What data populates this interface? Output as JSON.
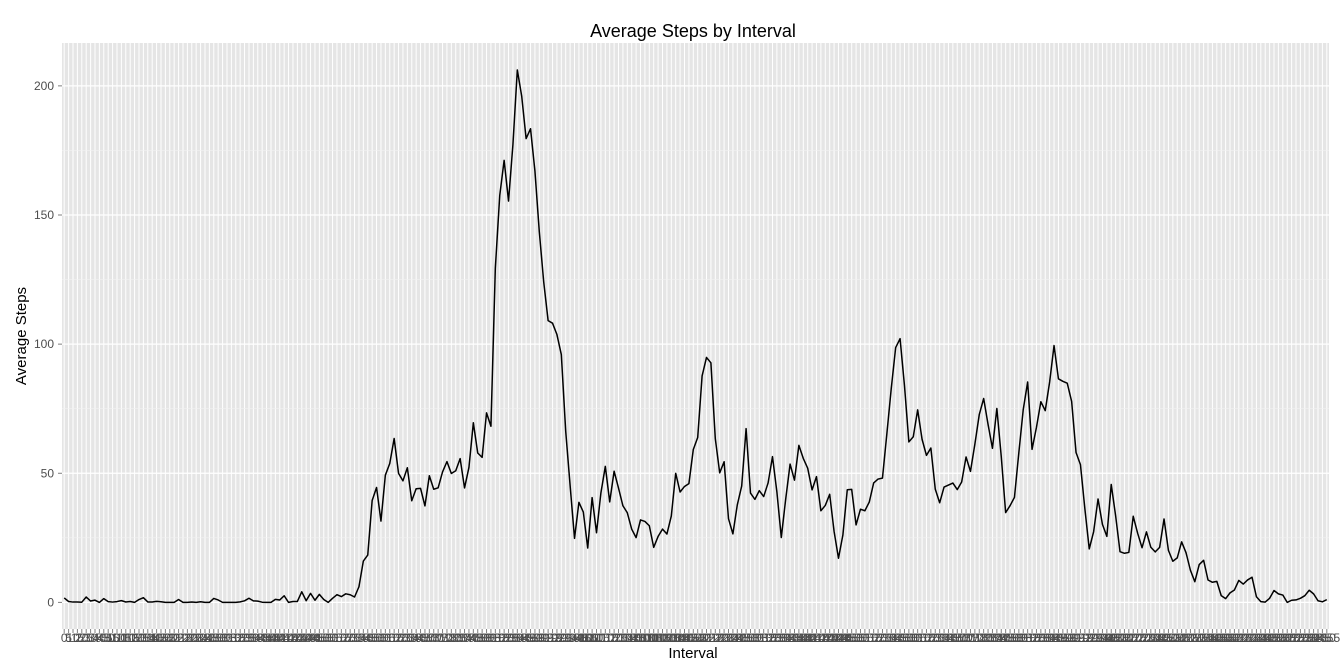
{
  "chart_data": {
    "type": "line",
    "title": "Average Steps by Interval",
    "xlabel": "Interval",
    "ylabel": "Average Steps",
    "x_axis": "categorical",
    "y_ticks": [
      0,
      50,
      100,
      150,
      200
    ],
    "ylim": [
      -10.3,
      216.6
    ],
    "grid": true,
    "colors": {
      "panel": "#e5e5e5",
      "grid": "#ffffff",
      "line": "#000000",
      "tick_text": "#4d4d4d"
    },
    "series": [
      {
        "values": [
          1.72,
          0.34,
          0.13,
          0.15,
          0.08,
          2.09,
          0.53,
          0.87,
          0.0,
          1.47,
          0.3,
          0.13,
          0.32,
          0.68,
          0.15,
          0.34,
          0.0,
          1.11,
          1.83,
          0.17,
          0.17,
          0.38,
          0.26,
          0.0,
          0.0,
          0.0,
          1.13,
          0.0,
          0.0,
          0.13,
          0.0,
          0.23,
          0.0,
          0.0,
          1.55,
          0.94,
          0.0,
          0.0,
          0.0,
          0.0,
          0.21,
          0.62,
          1.62,
          0.58,
          0.49,
          0.08,
          0.0,
          0.0,
          1.18,
          0.94,
          2.57,
          0.0,
          0.34,
          0.36,
          4.11,
          0.66,
          3.49,
          0.83,
          3.11,
          1.11,
          0.0,
          1.57,
          3.0,
          2.25,
          3.32,
          2.96,
          2.09,
          6.06,
          16.02,
          18.34,
          39.45,
          44.49,
          31.49,
          49.26,
          53.77,
          63.45,
          49.96,
          47.08,
          52.15,
          39.34,
          44.02,
          44.17,
          37.36,
          49.04,
          43.81,
          44.38,
          50.51,
          54.51,
          49.92,
          50.98,
          55.68,
          44.32,
          52.26,
          69.55,
          57.85,
          56.15,
          73.38,
          68.21,
          129.43,
          157.53,
          171.15,
          155.4,
          177.3,
          206.17,
          195.92,
          179.57,
          183.4,
          167.02,
          143.45,
          124.04,
          109.11,
          108.11,
          103.72,
          95.97,
          66.21,
          45.23,
          24.8,
          38.75,
          34.98,
          21.06,
          40.57,
          26.98,
          42.42,
          52.66,
          38.92,
          50.79,
          44.28,
          37.42,
          34.7,
          28.34,
          25.09,
          31.94,
          31.36,
          29.68,
          21.32,
          25.55,
          28.38,
          26.47,
          33.43,
          49.98,
          42.75,
          44.89,
          46.0,
          59.19,
          63.87,
          87.7,
          94.85,
          92.77,
          63.4,
          50.17,
          54.47,
          32.42,
          26.53,
          37.74,
          45.06,
          67.28,
          42.34,
          39.89,
          43.26,
          40.98,
          46.25,
          56.43,
          42.75,
          25.13,
          39.97,
          53.55,
          47.32,
          60.81,
          55.75,
          51.96,
          43.58,
          48.7,
          35.47,
          37.55,
          41.85,
          27.51,
          17.11,
          26.08,
          43.62,
          43.77,
          30.02,
          36.08,
          35.49,
          38.85,
          46.26,
          47.75,
          48.13,
          65.32,
          82.91,
          98.66,
          102.11,
          83.96,
          62.13,
          64.13,
          74.55,
          63.17,
          56.91,
          59.77,
          43.87,
          38.57,
          44.66,
          45.45,
          46.21,
          43.68,
          46.62,
          56.3,
          50.72,
          61.23,
          72.72,
          78.94,
          68.94,
          59.66,
          75.09,
          56.51,
          34.77,
          37.45,
          40.68,
          58.02,
          74.7,
          85.32,
          59.26,
          67.77,
          77.7,
          74.25,
          85.34,
          99.45,
          86.58,
          85.6,
          84.87,
          77.83,
          58.04,
          53.36,
          36.32,
          20.72,
          27.4,
          40.02,
          30.21,
          25.55,
          45.66,
          33.53,
          19.62,
          19.02,
          19.34,
          33.34,
          26.81,
          21.17,
          27.3,
          21.34,
          19.55,
          21.32,
          32.3,
          20.15,
          15.94,
          17.23,
          23.45,
          19.25,
          12.45,
          8.02,
          14.66,
          16.3,
          8.68,
          7.79,
          8.13,
          2.62,
          1.45,
          3.68,
          4.81,
          8.51,
          7.08,
          8.7,
          9.75,
          2.2,
          0.32,
          0.11,
          1.6,
          4.6,
          3.3,
          2.85,
          0.0,
          0.83,
          0.96,
          1.58,
          2.6,
          4.7,
          3.3,
          0.64,
          0.23,
          1.08
        ],
        "color": "#000000"
      }
    ],
    "x_tick_labels": [
      "0",
      "5",
      "10",
      "15",
      "20",
      "25",
      "30",
      "35",
      "40",
      "45",
      "50",
      "55",
      "100",
      "105",
      "110",
      "115",
      "120",
      "125",
      "130",
      "135",
      "140",
      "145",
      "150",
      "155",
      "200",
      "205",
      "210",
      "215",
      "220",
      "225",
      "230",
      "235",
      "240",
      "245",
      "250",
      "255",
      "300",
      "305",
      "310",
      "315",
      "320",
      "325",
      "330",
      "335",
      "340",
      "345",
      "350",
      "355",
      "400",
      "405",
      "410",
      "415",
      "420",
      "425",
      "430",
      "435",
      "440",
      "445",
      "450",
      "455",
      "500",
      "505",
      "510",
      "515",
      "520",
      "525",
      "530",
      "535",
      "540",
      "545",
      "550",
      "555",
      "600",
      "605",
      "610",
      "615",
      "620",
      "625",
      "630",
      "635",
      "640",
      "645",
      "650",
      "655",
      "700",
      "705",
      "710",
      "715",
      "720",
      "725",
      "730",
      "735",
      "740",
      "745",
      "750",
      "755",
      "800",
      "805",
      "810",
      "815",
      "820",
      "825",
      "830",
      "835",
      "840",
      "845",
      "850",
      "855",
      "900",
      "905",
      "910",
      "915",
      "920",
      "925",
      "930",
      "935",
      "940",
      "945",
      "950",
      "955",
      "1000",
      "1005",
      "1010",
      "1015",
      "1020",
      "1025",
      "1030",
      "1035",
      "1040",
      "1045",
      "1050",
      "1055",
      "1100",
      "1105",
      "1110",
      "1115",
      "1120",
      "1125",
      "1130",
      "1135",
      "1140",
      "1145",
      "1150",
      "1155",
      "1200",
      "1205",
      "1210",
      "1215",
      "1220",
      "1225",
      "1230",
      "1235",
      "1240",
      "1245",
      "1250",
      "1255",
      "1300",
      "1305",
      "1310",
      "1315",
      "1320",
      "1325",
      "1330",
      "1335",
      "1340",
      "1345",
      "1350",
      "1355",
      "1400",
      "1405",
      "1410",
      "1415",
      "1420",
      "1425",
      "1430",
      "1435",
      "1440",
      "1445",
      "1450",
      "1455",
      "1500",
      "1505",
      "1510",
      "1515",
      "1520",
      "1525",
      "1530",
      "1535",
      "1540",
      "1545",
      "1550",
      "1555",
      "1600",
      "1605",
      "1610",
      "1615",
      "1620",
      "1625",
      "1630",
      "1635",
      "1640",
      "1645",
      "1650",
      "1655",
      "1700",
      "1705",
      "1710",
      "1715",
      "1720",
      "1725",
      "1730",
      "1735",
      "1740",
      "1745",
      "1750",
      "1755",
      "1800",
      "1805",
      "1810",
      "1815",
      "1820",
      "1825",
      "1830",
      "1835",
      "1840",
      "1845",
      "1850",
      "1855",
      "1900",
      "1905",
      "1910",
      "1915",
      "1920",
      "1925",
      "1930",
      "1935",
      "1940",
      "1945",
      "1950",
      "1955",
      "2000",
      "2005",
      "2010",
      "2015",
      "2020",
      "2025",
      "2030",
      "2035",
      "2040",
      "2045",
      "2050",
      "2055",
      "2100",
      "2105",
      "2110",
      "2115",
      "2120",
      "2125",
      "2130",
      "2135",
      "2140",
      "2145",
      "2150",
      "2155",
      "2200",
      "2205",
      "2210",
      "2215",
      "2220",
      "2225",
      "2230",
      "2235",
      "2240",
      "2245",
      "2250",
      "2255",
      "2300",
      "2305",
      "2310",
      "2315",
      "2320",
      "2325",
      "2330",
      "2335",
      "2340",
      "2345",
      "2350",
      "2355"
    ]
  }
}
